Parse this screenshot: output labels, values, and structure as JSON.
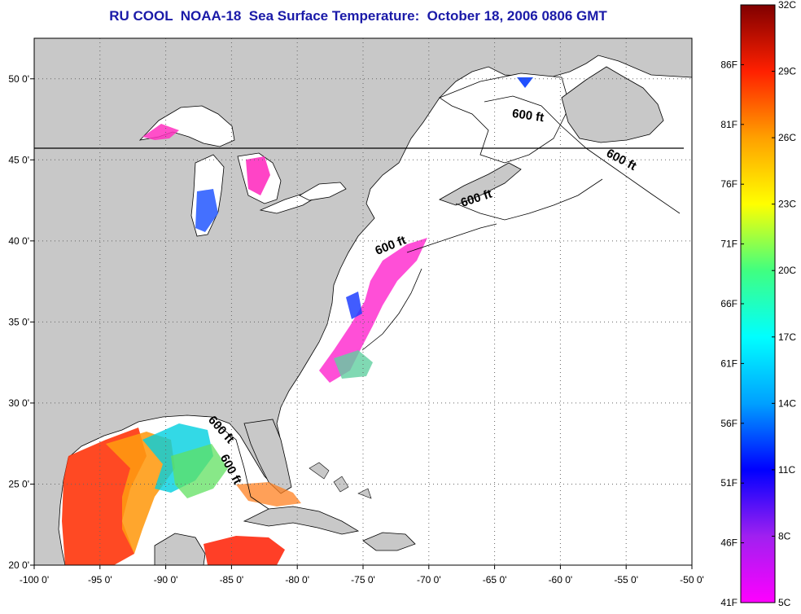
{
  "title": "RU COOL  NOAA-18  Sea Surface Temperature:  October 18, 2006 0806 GMT",
  "map": {
    "lon_range": [
      -100,
      -50
    ],
    "lat_range": [
      20,
      52.5
    ],
    "lon_ticks": [
      {
        "value": -100,
        "label": "-100 0'"
      },
      {
        "value": -95,
        "label": "-95 0'"
      },
      {
        "value": -90,
        "label": "-90 0'"
      },
      {
        "value": -85,
        "label": "-85 0'"
      },
      {
        "value": -80,
        "label": "-80 0'"
      },
      {
        "value": -75,
        "label": "-75 0'"
      },
      {
        "value": -70,
        "label": "-70 0'"
      },
      {
        "value": -65,
        "label": "-65 0'"
      },
      {
        "value": -60,
        "label": "-60 0'"
      },
      {
        "value": -55,
        "label": "-55 0'"
      },
      {
        "value": -50,
        "label": "-50 0'"
      }
    ],
    "lat_ticks": [
      {
        "value": 20,
        "label": "20 0'"
      },
      {
        "value": 25,
        "label": "25 0'"
      },
      {
        "value": 30,
        "label": "30 0'"
      },
      {
        "value": 35,
        "label": "35 0'"
      },
      {
        "value": 40,
        "label": "40 0'"
      },
      {
        "value": 45,
        "label": "45 0'"
      },
      {
        "value": 50,
        "label": "50 0'"
      }
    ],
    "grid": "dotted",
    "land_color": "#c8c8c8",
    "ocean_color": "#ffffff",
    "contour_labels": [
      {
        "text": "600 ft",
        "lon": -62.5,
        "lat": 47.5,
        "angle": 8
      },
      {
        "text": "600 ft",
        "lon": -55.5,
        "lat": 44.8,
        "angle": 28
      },
      {
        "text": "600 ft",
        "lon": -66.3,
        "lat": 42.4,
        "angle": -18
      },
      {
        "text": "600 ft",
        "lon": -72.8,
        "lat": 39.5,
        "angle": -22
      },
      {
        "text": "600 ft",
        "lon": -86.0,
        "lat": 28.2,
        "angle": 48
      },
      {
        "text": "600 ft",
        "lon": -85.3,
        "lat": 25.8,
        "angle": 62
      }
    ]
  },
  "colorbar": {
    "f_labels": [
      "41F",
      "46F",
      "51F",
      "56F",
      "61F",
      "66F",
      "71F",
      "76F",
      "81F",
      "86F"
    ],
    "c_labels": [
      "5C",
      "8C",
      "11C",
      "14C",
      "17C",
      "20C",
      "23C",
      "26C",
      "29C",
      "32C"
    ],
    "colors": [
      "#ff00ff",
      "#a020f0",
      "#0000ff",
      "#00a0ff",
      "#00ffff",
      "#40ff80",
      "#ffff00",
      "#ffa000",
      "#ff2000",
      "#800000"
    ]
  }
}
